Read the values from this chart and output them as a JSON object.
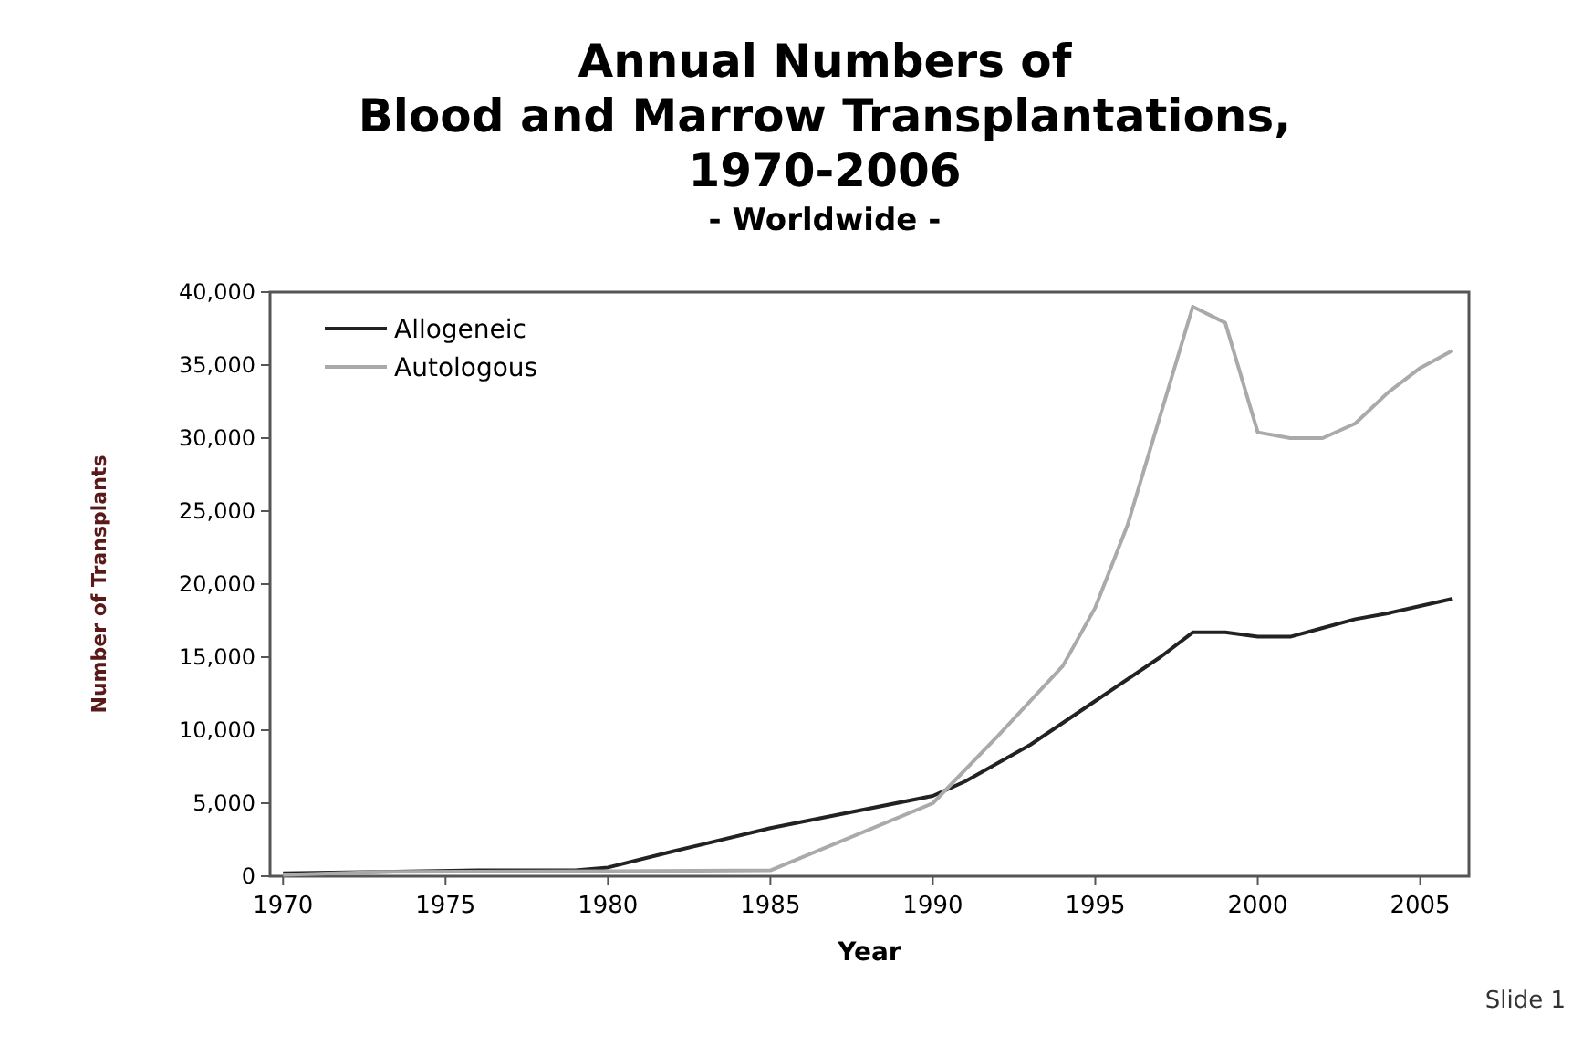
{
  "chart_data": {
    "type": "line",
    "title": "Annual Numbers of\nBlood and Marrow Transplantations,\n1970-2006",
    "subtitle": "- Worldwide -",
    "xlabel": "Year",
    "ylabel": "Number of Transplants",
    "annotations": [
      "Slide 1"
    ],
    "xlim": [
      1969.6,
      2006.5
    ],
    "xticks": [
      1970,
      1975,
      1980,
      1985,
      1990,
      1995,
      2000,
      2005
    ],
    "ylim": [
      0,
      40000
    ],
    "yticks": [
      {
        "value": 0,
        "label": "0"
      },
      {
        "value": 5000,
        "label": "5,000"
      },
      {
        "value": 10000,
        "label": "10,000"
      },
      {
        "value": 15000,
        "label": "15,000"
      },
      {
        "value": 20000,
        "label": "20,000"
      },
      {
        "value": 25000,
        "label": "25,000"
      },
      {
        "value": 30000,
        "label": "30,000"
      },
      {
        "value": 35000,
        "label": "35,000"
      },
      {
        "value": 40000,
        "label": "40,000"
      }
    ],
    "grid": false,
    "legend": "top left",
    "marker": "none",
    "line_style": "solid",
    "series": [
      {
        "name": "Allogeneic",
        "color": "#222222",
        "x": [
          1970,
          1973,
          1976,
          1979,
          1980,
          1982,
          1985,
          1990,
          1991,
          1993,
          1995,
          1997,
          1998,
          1999,
          2000,
          2001,
          2002,
          2003,
          2004,
          2005,
          2006
        ],
        "values": [
          200,
          300,
          400,
          400,
          600,
          1700,
          3300,
          5500,
          6500,
          9000,
          12000,
          15000,
          16700,
          16700,
          16400,
          16400,
          17000,
          17600,
          18000,
          18500,
          19000
        ]
      },
      {
        "name": "Autologous",
        "color": "#aaaaaa",
        "x": [
          1970,
          1973,
          1980,
          1985,
          1990,
          1992,
          1994,
          1995,
          1996,
          1998,
          1999,
          2000,
          2001,
          2002,
          2003,
          2004,
          2005,
          2006
        ],
        "values": [
          100,
          300,
          350,
          400,
          5000,
          9600,
          14400,
          18400,
          24100,
          39000,
          37900,
          30400,
          30000,
          30000,
          31000,
          33100,
          34800,
          36000
        ]
      }
    ]
  }
}
